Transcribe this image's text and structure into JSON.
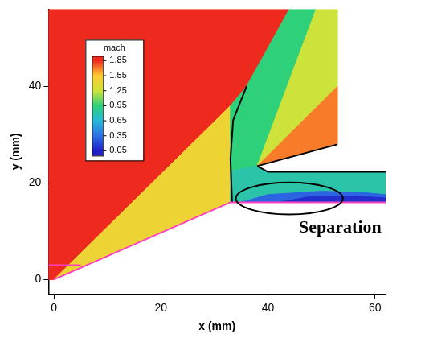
{
  "chart_data": {
    "type": "contour",
    "x_label": "x (mm)",
    "y_label": "y (mm)",
    "xlim": [
      -1,
      62
    ],
    "ylim": [
      -3,
      56
    ],
    "xticks": [
      0,
      20,
      40,
      60
    ],
    "yticks": [
      0,
      20,
      40
    ],
    "grid": false,
    "colorbar": {
      "title": "mach",
      "ticks": [
        1.85,
        1.55,
        1.25,
        0.95,
        0.65,
        0.35,
        0.05
      ],
      "colors": [
        "#ee2a1f",
        "#ffcc33",
        "#cde23a",
        "#2fd07a",
        "#27b8d8",
        "#2e72e6",
        "#2020c8"
      ]
    },
    "regions": [
      {
        "mach": 1.85,
        "polygon": [
          [
            -1,
            0
          ],
          [
            -1,
            56
          ],
          [
            44,
            56
          ],
          [
            36,
            40
          ],
          [
            33,
            36
          ],
          [
            0,
            0
          ]
        ]
      },
      {
        "mach": 1.45,
        "polygon": [
          [
            0,
            0
          ],
          [
            33,
            36
          ],
          [
            33,
            16
          ]
        ]
      },
      {
        "mach": 0.95,
        "polygon": [
          [
            33,
            22.5
          ],
          [
            33,
            36
          ],
          [
            36,
            40
          ],
          [
            44,
            56
          ],
          [
            49,
            56
          ],
          [
            38,
            23.5
          ]
        ]
      },
      {
        "mach": 1.25,
        "polygon": [
          [
            38,
            23.5
          ],
          [
            49,
            56
          ],
          [
            53,
            56
          ],
          [
            53,
            40
          ]
        ]
      },
      {
        "mach": 1.7,
        "polygon": [
          [
            38,
            23.5
          ],
          [
            53,
            40
          ],
          [
            53,
            28
          ]
        ]
      },
      {
        "mach": 0.8,
        "polygon": [
          [
            33,
            16
          ],
          [
            33,
            22.5
          ],
          [
            38,
            23.5
          ],
          [
            40,
            22.3
          ],
          [
            62,
            22.3
          ],
          [
            62,
            16
          ]
        ]
      },
      {
        "mach": 0.3,
        "polygon": [
          [
            35,
            16
          ],
          [
            40,
            17.6
          ],
          [
            50,
            18.3
          ],
          [
            58,
            18
          ],
          [
            62,
            17.6
          ],
          [
            62,
            16
          ]
        ]
      },
      {
        "mach": 0.1,
        "polygon": [
          [
            42,
            16
          ],
          [
            48,
            17.2
          ],
          [
            56,
            17.3
          ],
          [
            62,
            16.9
          ],
          [
            62,
            16
          ]
        ]
      }
    ],
    "lines": [
      {
        "color": "#ff40c0",
        "points": [
          [
            0,
            0
          ],
          [
            33,
            16
          ],
          [
            62,
            16
          ]
        ]
      },
      {
        "color": "#ff40c0",
        "points": [
          [
            -1,
            3
          ],
          [
            5,
            3
          ]
        ]
      },
      {
        "color": "#000000",
        "points": [
          [
            33.3,
            16
          ],
          [
            33,
            25
          ],
          [
            33.5,
            33
          ],
          [
            36,
            40
          ]
        ]
      },
      {
        "color": "#000000",
        "points": [
          [
            38,
            23.5
          ],
          [
            53,
            28
          ]
        ]
      },
      {
        "color": "#000000",
        "points": [
          [
            38,
            23.5
          ],
          [
            40,
            22.3
          ],
          [
            62,
            22.3
          ]
        ]
      }
    ],
    "annotation": {
      "text": "Separation",
      "ellipse": {
        "center": [
          44,
          16.8
        ],
        "rx": 10,
        "ry": 3.3
      }
    }
  }
}
